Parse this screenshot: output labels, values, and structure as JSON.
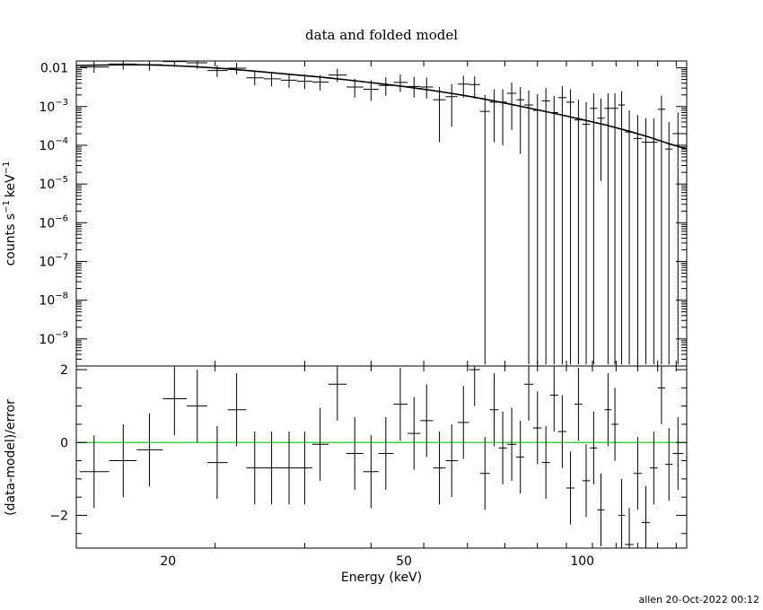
{
  "chart_data": {
    "type": "scatter",
    "title": "data and folded model",
    "xlabel": "Energy (keV)",
    "x_scale": "log",
    "xlim": [
      14,
      150
    ],
    "x_ticks": [
      {
        "v": 20,
        "label": "20"
      },
      {
        "v": 50,
        "label": "50"
      },
      {
        "v": 100,
        "label": "100"
      }
    ],
    "footer": "allen 20-Oct-2022 00:12",
    "top_panel": {
      "ylabel": "counts s",
      "ylabel_unit": "keV",
      "ylabel_exp": "−1",
      "y_scale": "log",
      "ylim": [
        2e-10,
        0.015
      ],
      "y_ticks": [
        {
          "v": 0.01,
          "m": "0.01",
          "e": ""
        },
        {
          "v": 0.001,
          "m": "10",
          "e": "−3"
        },
        {
          "v": 0.0001,
          "m": "10",
          "e": "−4"
        },
        {
          "v": 1e-05,
          "m": "10",
          "e": "−5"
        },
        {
          "v": 1e-06,
          "m": "10",
          "e": "−6"
        },
        {
          "v": 1e-07,
          "m": "10",
          "e": "−7"
        },
        {
          "v": 1e-08,
          "m": "10",
          "e": "−8"
        },
        {
          "v": 1e-09,
          "m": "10",
          "e": "−9"
        }
      ],
      "model": [
        [
          14,
          0.0115
        ],
        [
          15.5,
          0.0118
        ],
        [
          17,
          0.012
        ],
        [
          18.5,
          0.0119
        ],
        [
          20,
          0.0115
        ],
        [
          22,
          0.0108
        ],
        [
          25,
          0.0095
        ],
        [
          28,
          0.0082
        ],
        [
          32,
          0.0068
        ],
        [
          36,
          0.0058
        ],
        [
          40,
          0.0049
        ],
        [
          45,
          0.004
        ],
        [
          50,
          0.0033
        ],
        [
          55,
          0.0027
        ],
        [
          60,
          0.0022
        ],
        [
          65,
          0.0018
        ],
        [
          70,
          0.00145
        ],
        [
          75,
          0.00118
        ],
        [
          80,
          0.00096
        ],
        [
          90,
          0.00066
        ],
        [
          100,
          0.00046
        ],
        [
          110,
          0.00033
        ],
        [
          120,
          0.00023
        ],
        [
          130,
          0.00016
        ],
        [
          140,
          0.00011
        ],
        [
          150,
          8e-05
        ]
      ],
      "points": [
        [
          15.0,
          0.0105,
          14.2,
          15.9,
          0.0145,
          0.0075
        ],
        [
          16.8,
          0.0125,
          15.9,
          17.7,
          0.0165,
          0.009
        ],
        [
          18.6,
          0.012,
          17.7,
          19.6,
          0.016,
          0.0085
        ],
        [
          20.5,
          0.0145,
          19.6,
          21.5,
          0.019,
          0.0105
        ],
        [
          22.4,
          0.0135,
          21.5,
          23.3,
          0.018,
          0.0095
        ],
        [
          24.2,
          0.0085,
          23.3,
          25.2,
          0.0118,
          0.0058
        ],
        [
          26.1,
          0.0098,
          25.2,
          27.1,
          0.0135,
          0.0068
        ],
        [
          28.0,
          0.0055,
          27.1,
          29.0,
          0.008,
          0.0035
        ],
        [
          29.9,
          0.0052,
          29.0,
          31.0,
          0.0078,
          0.0033
        ],
        [
          32.0,
          0.0048,
          31.0,
          33.0,
          0.0072,
          0.003
        ],
        [
          34.0,
          0.0045,
          33.0,
          35.0,
          0.0068,
          0.0028
        ],
        [
          36.1,
          0.0043,
          35.0,
          37.3,
          0.0065,
          0.0026
        ],
        [
          38.6,
          0.0065,
          37.3,
          40.0,
          0.0095,
          0.0043
        ],
        [
          41.3,
          0.0032,
          40.0,
          42.7,
          0.0052,
          0.0017
        ],
        [
          44.0,
          0.0028,
          42.7,
          45.3,
          0.0048,
          0.0014
        ],
        [
          46.6,
          0.0035,
          45.3,
          48.0,
          0.0058,
          0.0019
        ],
        [
          49.3,
          0.0042,
          48.0,
          50.7,
          0.0068,
          0.0024
        ],
        [
          52.0,
          0.0033,
          50.7,
          53.3,
          0.0058,
          0.0017
        ],
        [
          54.6,
          0.0032,
          53.3,
          56.0,
          0.0056,
          0.0016
        ],
        [
          57.4,
          0.0015,
          56.0,
          58.8,
          0.0032,
          0.00012
        ],
        [
          60.2,
          0.0018,
          58.8,
          61.6,
          0.0038,
          0.0003
        ],
        [
          63.0,
          0.0038,
          61.6,
          64.4,
          0.0062,
          0.0017
        ],
        [
          65.8,
          0.0037,
          64.4,
          67.2,
          0.006,
          0.0016
        ],
        [
          68.5,
          0.00075,
          67.2,
          69.8,
          0.002,
          2.2e-10
        ],
        [
          71.0,
          0.0013,
          69.8,
          72.2,
          0.0028,
          0.00012
        ],
        [
          73.4,
          0.0013,
          72.2,
          74.6,
          0.0028,
          0.0001
        ],
        [
          76.0,
          0.0022,
          74.6,
          77.4,
          0.0042,
          0.00025
        ],
        [
          78.6,
          0.0015,
          77.4,
          79.8,
          0.0032,
          6e-05
        ],
        [
          81.2,
          0.0011,
          79.8,
          82.6,
          0.0026,
          2.2e-10
        ],
        [
          84.0,
          0.0008,
          82.6,
          85.4,
          0.0021,
          2.2e-10
        ],
        [
          86.8,
          0.0014,
          85.4,
          88.2,
          0.003,
          2.2e-10
        ],
        [
          89.6,
          0.0007,
          88.2,
          91.0,
          0.0019,
          2.2e-10
        ],
        [
          92.5,
          0.0017,
          91.0,
          94.0,
          0.0034,
          2.2e-10
        ],
        [
          95.5,
          0.0013,
          94.0,
          97.0,
          0.0028,
          2.2e-10
        ],
        [
          98.5,
          0.00045,
          97.0,
          100.0,
          0.0015,
          2.2e-10
        ],
        [
          101.5,
          0.00035,
          100.0,
          103.0,
          0.0013,
          2.2e-10
        ],
        [
          104.5,
          0.0009,
          103.0,
          106.0,
          0.0022,
          2.2e-10
        ],
        [
          107.5,
          0.0005,
          106.0,
          109.0,
          0.0016,
          1.2e-05
        ],
        [
          110.5,
          0.0009,
          109.0,
          112.0,
          0.0022,
          2.2e-10
        ],
        [
          113.5,
          0.0009,
          112.0,
          115.0,
          0.0022,
          2.2e-10
        ],
        [
          116.5,
          0.0011,
          115.0,
          118.0,
          0.0025,
          2.2e-10
        ],
        [
          120.0,
          0.00022,
          118.0,
          122.0,
          0.0008,
          2.2e-10
        ],
        [
          124.0,
          0.00015,
          122.0,
          126.0,
          0.0006,
          2.2e-10
        ],
        [
          128.0,
          0.00012,
          126.0,
          130.0,
          0.0005,
          2.2e-10
        ],
        [
          132.0,
          0.00012,
          130.0,
          134.0,
          0.0005,
          2.2e-10
        ],
        [
          136.0,
          0.00085,
          134.0,
          138.0,
          0.0019,
          2.2e-10
        ],
        [
          140.0,
          8e-05,
          138.0,
          142.0,
          0.0004,
          2.2e-10
        ],
        [
          145.0,
          0.0002,
          142.0,
          148.0,
          0.0007,
          2.2e-10
        ]
      ]
    },
    "bottom_panel": {
      "ylabel": "(data-model)/error",
      "y_scale": "linear",
      "ylim": [
        -2.9,
        2.1
      ],
      "y_ticks": [
        {
          "v": 2,
          "label": "2"
        },
        {
          "v": 0,
          "label": "0"
        },
        {
          "v": -2,
          "label": "−2"
        }
      ],
      "zero_line_color": "#22cc22",
      "points": [
        [
          15.0,
          -0.8,
          14.2,
          15.9,
          0.2,
          -1.8
        ],
        [
          16.8,
          -0.5,
          15.9,
          17.7,
          0.5,
          -1.5
        ],
        [
          18.6,
          -0.2,
          17.7,
          19.6,
          0.8,
          -1.2
        ],
        [
          20.5,
          1.2,
          19.6,
          21.5,
          2.2,
          0.2
        ],
        [
          22.4,
          1.0,
          21.5,
          23.3,
          2.0,
          0.0
        ],
        [
          24.2,
          -0.55,
          23.3,
          25.2,
          0.45,
          -1.55
        ],
        [
          26.1,
          0.9,
          25.2,
          27.1,
          1.9,
          -0.1
        ],
        [
          28.0,
          -0.7,
          27.1,
          29.0,
          0.3,
          -1.7
        ],
        [
          29.9,
          -0.7,
          29.0,
          31.0,
          0.3,
          -1.7
        ],
        [
          32.0,
          -0.7,
          31.0,
          33.0,
          0.3,
          -1.7
        ],
        [
          34.0,
          -0.7,
          33.0,
          35.0,
          0.3,
          -1.7
        ],
        [
          36.1,
          -0.05,
          35.0,
          37.3,
          0.95,
          -1.05
        ],
        [
          38.6,
          1.6,
          37.3,
          40.0,
          2.2,
          0.6
        ],
        [
          41.3,
          -0.3,
          40.0,
          42.7,
          0.7,
          -1.3
        ],
        [
          44.0,
          -0.8,
          42.7,
          45.3,
          0.2,
          -1.8
        ],
        [
          46.6,
          -0.3,
          45.3,
          48.0,
          0.7,
          -1.3
        ],
        [
          49.3,
          1.05,
          48.0,
          50.7,
          2.05,
          0.05
        ],
        [
          52.0,
          0.25,
          50.7,
          53.3,
          1.25,
          -0.75
        ],
        [
          54.6,
          0.6,
          53.3,
          56.0,
          1.6,
          -0.4
        ],
        [
          57.4,
          -0.7,
          56.0,
          58.8,
          0.3,
          -1.7
        ],
        [
          60.2,
          -0.5,
          58.8,
          61.6,
          0.5,
          -1.5
        ],
        [
          63.0,
          0.55,
          61.6,
          64.4,
          1.55,
          -0.45
        ],
        [
          65.8,
          2.0,
          64.4,
          67.2,
          2.2,
          1.0
        ],
        [
          68.5,
          -0.85,
          67.2,
          69.8,
          0.15,
          -1.85
        ],
        [
          71.0,
          0.9,
          69.8,
          72.2,
          1.9,
          -0.1
        ],
        [
          73.4,
          -0.15,
          72.2,
          74.6,
          0.85,
          -1.15
        ],
        [
          76.0,
          -0.05,
          74.6,
          77.4,
          0.95,
          -1.05
        ],
        [
          78.6,
          -0.4,
          77.4,
          79.8,
          0.6,
          -1.4
        ],
        [
          81.2,
          1.6,
          79.8,
          82.6,
          2.2,
          0.6
        ],
        [
          84.0,
          0.4,
          82.6,
          85.4,
          1.4,
          -0.6
        ],
        [
          86.8,
          -0.55,
          85.4,
          88.2,
          0.45,
          -1.55
        ],
        [
          89.6,
          1.3,
          88.2,
          91.0,
          2.2,
          0.3
        ],
        [
          92.5,
          0.3,
          91.0,
          94.0,
          1.3,
          -0.7
        ],
        [
          95.5,
          -1.25,
          94.0,
          97.0,
          -0.25,
          -2.25
        ],
        [
          98.5,
          1.05,
          97.0,
          100.0,
          2.05,
          0.05
        ],
        [
          101.5,
          -1.05,
          100.0,
          103.0,
          -0.05,
          -2.05
        ],
        [
          104.5,
          -0.15,
          103.0,
          106.0,
          0.85,
          -1.15
        ],
        [
          107.5,
          -1.85,
          106.0,
          109.0,
          -0.85,
          -2.85
        ],
        [
          110.5,
          0.9,
          109.0,
          112.0,
          1.9,
          -0.1
        ],
        [
          113.5,
          0.5,
          112.0,
          115.0,
          1.5,
          -0.5
        ],
        [
          116.5,
          -2.0,
          115.0,
          118.0,
          -1.0,
          -3.0
        ],
        [
          120.0,
          -2.8,
          118.0,
          122.0,
          -1.8,
          -3.0
        ],
        [
          124.0,
          -0.85,
          122.0,
          126.0,
          0.15,
          -1.85
        ],
        [
          128.0,
          -2.2,
          126.0,
          130.0,
          -1.2,
          -3.0
        ],
        [
          132.0,
          -0.7,
          130.0,
          134.0,
          0.3,
          -1.7
        ],
        [
          136.0,
          1.5,
          134.0,
          138.0,
          2.2,
          0.5
        ],
        [
          140.0,
          -0.6,
          138.0,
          142.0,
          0.4,
          -1.6
        ],
        [
          145.0,
          -0.3,
          142.0,
          148.0,
          0.7,
          -1.3
        ]
      ]
    }
  }
}
